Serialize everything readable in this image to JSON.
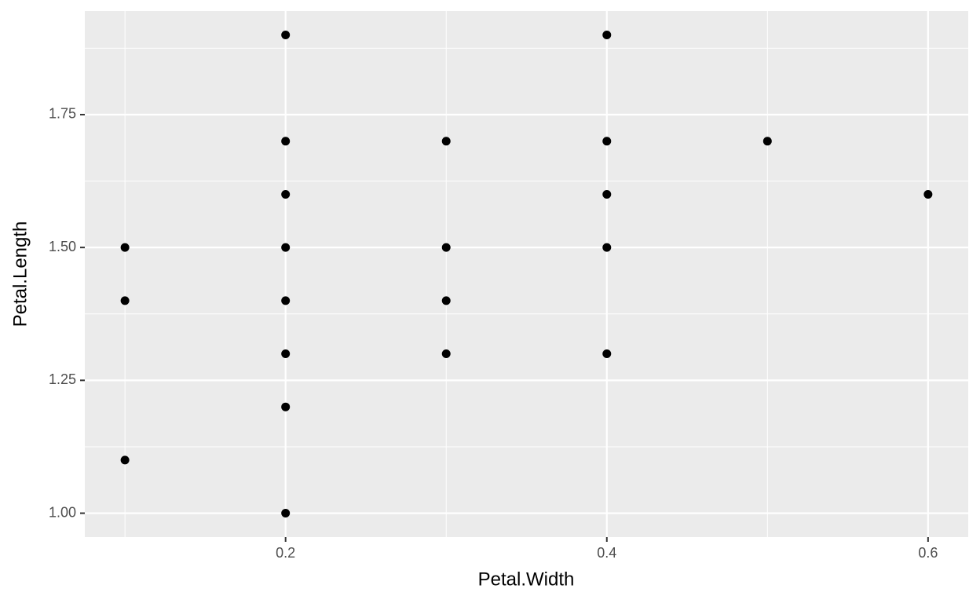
{
  "chart_data": {
    "type": "scatter",
    "x_label": "Petal.Width",
    "y_label": "Petal.Length",
    "x": [
      0.1,
      0.1,
      0.1,
      0.2,
      0.2,
      0.2,
      0.2,
      0.2,
      0.2,
      0.2,
      0.2,
      0.3,
      0.3,
      0.3,
      0.3,
      0.4,
      0.4,
      0.4,
      0.4,
      0.4,
      0.5,
      0.6
    ],
    "values": [
      1.5,
      1.4,
      1.1,
      1.9,
      1.7,
      1.6,
      1.5,
      1.4,
      1.3,
      1.2,
      1.0,
      1.7,
      1.5,
      1.4,
      1.3,
      1.9,
      1.7,
      1.6,
      1.5,
      1.3,
      1.7,
      1.6
    ],
    "color": "#000000",
    "xlim": [
      0.075,
      0.625
    ],
    "xticks": [
      0.2,
      0.4,
      0.6
    ],
    "ylim": [
      0.955,
      1.945
    ],
    "yticks": [
      {
        "value": 1.0,
        "label": "1.00"
      },
      1.25,
      {
        "value": 1.5,
        "label": "1.50"
      },
      1.75
    ],
    "grid": true
  }
}
